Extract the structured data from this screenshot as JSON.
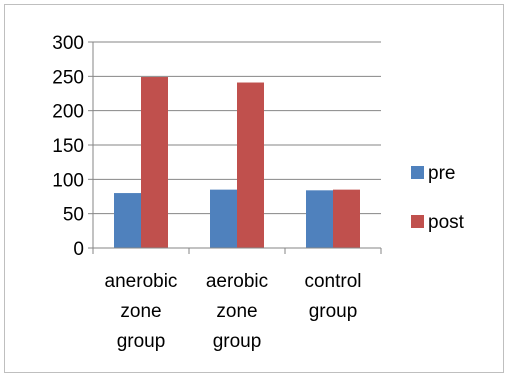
{
  "chart_data": {
    "type": "bar",
    "categories": [
      [
        "anerobic",
        "zone",
        "group"
      ],
      [
        "aerobic",
        "zone",
        "group"
      ],
      [
        "control",
        "group"
      ]
    ],
    "series": [
      {
        "name": "pre",
        "color": "#4f81bd",
        "values": [
          80,
          85,
          84
        ]
      },
      {
        "name": "post",
        "color": "#c0504d",
        "values": [
          249,
          241,
          85
        ]
      }
    ],
    "y_ticks": [
      0,
      50,
      100,
      150,
      200,
      250,
      300
    ],
    "ylim": [
      0,
      300
    ],
    "grid": true,
    "legend_position": "right"
  }
}
